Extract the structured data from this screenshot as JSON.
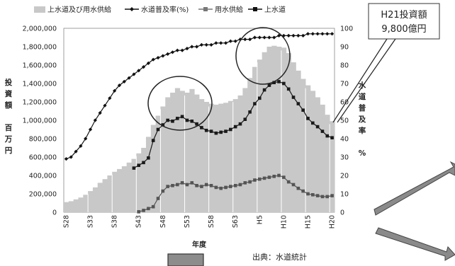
{
  "chart_data": {
    "type": "bar",
    "legend": {
      "position": "top",
      "entries": [
        "上水道及び用水供給",
        "水道普及率(%)",
        "用水供給",
        "上水道"
      ]
    },
    "x_ticks": [
      "S28",
      "S33",
      "S38",
      "S43",
      "S48",
      "S53",
      "S58",
      "S63",
      "H5",
      "H10",
      "H15",
      "H20"
    ],
    "xlabel": "年度",
    "ylabel_left": [
      "投",
      "資",
      "額",
      "",
      "百",
      "万",
      "円"
    ],
    "ylabel_right": [
      "水",
      "道",
      "普",
      "及",
      "率",
      "",
      "%"
    ],
    "y_left_ticks": [
      "0",
      "200,000",
      "400,000",
      "600,000",
      "800,000",
      "1,000,000",
      "1,200,000",
      "1,400,000",
      "1,600,000",
      "1,800,000",
      "2,000,000"
    ],
    "y_right_ticks": [
      "0",
      "10",
      "20",
      "30",
      "40",
      "50",
      "60",
      "70",
      "80",
      "90",
      "100"
    ],
    "ylim_left": [
      0,
      2000000
    ],
    "ylim_right": [
      0,
      100
    ],
    "years": [
      "S28",
      "S29",
      "S30",
      "S31",
      "S32",
      "S33",
      "S34",
      "S35",
      "S36",
      "S37",
      "S38",
      "S39",
      "S40",
      "S41",
      "S42",
      "S43",
      "S44",
      "S45",
      "S46",
      "S47",
      "S48",
      "S49",
      "S50",
      "S51",
      "S52",
      "S53",
      "S54",
      "S55",
      "S56",
      "S57",
      "S58",
      "S59",
      "S60",
      "S61",
      "S62",
      "S63",
      "H1",
      "H2",
      "H3",
      "H4",
      "H5",
      "H6",
      "H7",
      "H8",
      "H9",
      "H10",
      "H11",
      "H12",
      "H13",
      "H14",
      "H15",
      "H16",
      "H17",
      "H18",
      "H19",
      "H20"
    ],
    "series": [
      {
        "name": "上水道及び用水供給",
        "kind": "bar",
        "color": "#c8c8c8",
        "values": [
          110000,
          120000,
          140000,
          160000,
          190000,
          230000,
          270000,
          320000,
          360000,
          400000,
          440000,
          470000,
          500000,
          540000,
          580000,
          640000,
          700000,
          820000,
          950000,
          1050000,
          1150000,
          1250000,
          1300000,
          1350000,
          1320000,
          1300000,
          1340000,
          1280000,
          1230000,
          1200000,
          1180000,
          1170000,
          1180000,
          1190000,
          1210000,
          1230000,
          1270000,
          1350000,
          1460000,
          1580000,
          1660000,
          1740000,
          1800000,
          1810000,
          1800000,
          1790000,
          1730000,
          1630000,
          1540000,
          1450000,
          1380000,
          1320000,
          1250000,
          1170000,
          1060000,
          990000
        ]
      },
      {
        "name": "上水道",
        "kind": "line",
        "color": "#1a1a1a",
        "values": [
          null,
          null,
          null,
          null,
          null,
          null,
          null,
          null,
          null,
          null,
          null,
          null,
          null,
          null,
          480000,
          510000,
          540000,
          590000,
          780000,
          900000,
          950000,
          1000000,
          990000,
          1020000,
          1040000,
          1000000,
          990000,
          960000,
          920000,
          890000,
          880000,
          860000,
          870000,
          880000,
          900000,
          930000,
          960000,
          1010000,
          1090000,
          1180000,
          1240000,
          1330000,
          1380000,
          1410000,
          1420000,
          1400000,
          1340000,
          1250000,
          1180000,
          1110000,
          1020000,
          970000,
          930000,
          880000,
          830000,
          810000
        ]
      },
      {
        "name": "用水供給",
        "kind": "line",
        "color": "#555555",
        "values": [
          null,
          null,
          null,
          null,
          null,
          null,
          null,
          null,
          null,
          null,
          null,
          null,
          null,
          null,
          null,
          5000,
          20000,
          40000,
          60000,
          150000,
          230000,
          280000,
          290000,
          300000,
          320000,
          300000,
          320000,
          290000,
          280000,
          300000,
          290000,
          270000,
          260000,
          270000,
          280000,
          290000,
          300000,
          320000,
          330000,
          350000,
          360000,
          370000,
          380000,
          390000,
          400000,
          380000,
          330000,
          300000,
          260000,
          230000,
          200000,
          190000,
          180000,
          170000,
          170000,
          180000
        ]
      },
      {
        "name": "水道普及率(%)",
        "kind": "line",
        "axis": "right",
        "color": "#111111",
        "values": [
          29,
          30,
          33,
          36,
          40,
          45,
          50,
          54,
          58,
          62,
          66,
          69,
          71,
          73,
          75,
          77,
          79,
          81,
          83,
          84,
          85,
          86,
          87,
          88,
          88,
          89,
          90,
          90,
          91,
          91,
          91,
          92,
          92,
          92,
          93,
          93,
          94,
          94,
          94,
          95,
          95,
          95,
          95,
          95,
          96,
          96,
          96,
          96,
          96,
          96,
          97,
          97,
          97,
          97,
          97,
          97
        ]
      }
    ],
    "highlight_ellipses": 2,
    "annotation": {
      "line1": "H21投資額",
      "line2": "9,800億円"
    },
    "source": "出典：水道統計"
  }
}
